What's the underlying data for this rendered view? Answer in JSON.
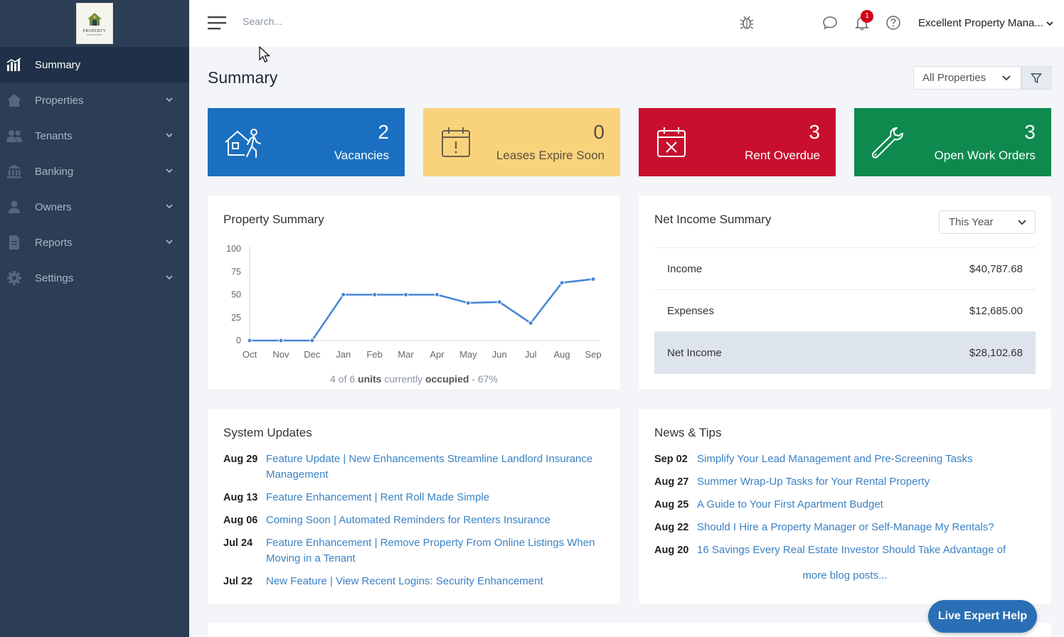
{
  "sidebar": {
    "logo": {
      "text": "PROPERTY",
      "sub": "MANAGEMENT"
    },
    "items": [
      {
        "label": "Summary",
        "icon": "chart-bars-icon"
      },
      {
        "label": "Properties",
        "icon": "home-icon"
      },
      {
        "label": "Tenants",
        "icon": "users-icon"
      },
      {
        "label": "Banking",
        "icon": "bank-icon"
      },
      {
        "label": "Owners",
        "icon": "user-icon"
      },
      {
        "label": "Reports",
        "icon": "document-icon"
      },
      {
        "label": "Settings",
        "icon": "gear-icon"
      }
    ]
  },
  "topbar": {
    "search_placeholder": "Search...",
    "notification_count": "1",
    "account_name": "Excellent Property Mana..."
  },
  "page": {
    "title": "Summary",
    "property_filter": "All Properties"
  },
  "tiles": [
    {
      "value": "2",
      "label": "Vacancies",
      "color": "#1b6fc0",
      "icon": "vacancy-icon"
    },
    {
      "value": "0",
      "label": "Leases Expire Soon",
      "color": "#f9d37c",
      "icon": "calendar-alert-icon"
    },
    {
      "value": "3",
      "label": "Rent Overdue",
      "color": "#c8102e",
      "icon": "calendar-x-icon"
    },
    {
      "value": "3",
      "label": "Open Work Orders",
      "color": "#0e8a4f",
      "icon": "wrench-icon"
    }
  ],
  "property_summary": {
    "title": "Property Summary",
    "occupancy_prefix": "4 of 6 ",
    "occupancy_bold": "units",
    "occupancy_mid": " currently ",
    "occupancy_bold2": "occupied",
    "occupancy_suffix": " - 67%"
  },
  "chart_data": {
    "type": "line",
    "categories": [
      "Oct",
      "Nov",
      "Dec",
      "Jan",
      "Feb",
      "Mar",
      "Apr",
      "May",
      "Jun",
      "Jul",
      "Aug",
      "Sep"
    ],
    "values": [
      0,
      0,
      0,
      50,
      50,
      50,
      50,
      41,
      42,
      19,
      63,
      67
    ],
    "yticks": [
      0,
      25,
      50,
      75,
      100
    ],
    "ylim": [
      0,
      100
    ],
    "color": "#4a86d4"
  },
  "net_income": {
    "title": "Net Income Summary",
    "period": "This Year",
    "rows": [
      {
        "label": "Income",
        "value": "$40,787.68"
      },
      {
        "label": "Expenses",
        "value": "$12,685.00"
      },
      {
        "label": "Net Income",
        "value": "$28,102.68"
      }
    ]
  },
  "system_updates": {
    "title": "System Updates",
    "items": [
      {
        "date": "Aug 29",
        "text": "Feature Update | New Enhancements Streamline Landlord Insurance Management"
      },
      {
        "date": "Aug 13",
        "text": "Feature Enhancement | Rent Roll Made Simple"
      },
      {
        "date": "Aug 06",
        "text": "Coming Soon | Automated Reminders for Renters Insurance"
      },
      {
        "date": "Jul 24",
        "text": "Feature Enhancement | Remove Property From Online Listings When Moving in a Tenant"
      },
      {
        "date": "Jul 22",
        "text": "New Feature | View Recent Logins: Security Enhancement"
      }
    ]
  },
  "news": {
    "title": "News & Tips",
    "items": [
      {
        "date": "Sep 02",
        "text": "Simplify Your Lead Management and Pre-Screening Tasks"
      },
      {
        "date": "Aug 27",
        "text": "Summer Wrap-Up Tasks for Your Rental Property"
      },
      {
        "date": "Aug 25",
        "text": "A Guide to Your First Apartment Budget"
      },
      {
        "date": "Aug 22",
        "text": "Should I Hire a Property Manager or Self-Manage My Rentals?"
      },
      {
        "date": "Aug 20",
        "text": "16 Savings Every Real Estate Investor Should Take Advantage of"
      }
    ],
    "more": "more blog posts..."
  },
  "live_help": "Live Expert Help"
}
